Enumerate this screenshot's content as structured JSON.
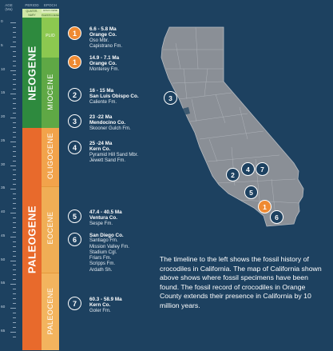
{
  "headers": {
    "age": "AGE",
    "age_unit": "(Ma)",
    "period": "PERIOD",
    "epoch": "EPOCH"
  },
  "ruler_labels": [
    "0",
    "5",
    "10",
    "15",
    "20",
    "25",
    "30",
    "35",
    "40",
    "45",
    "50",
    "55",
    "60",
    "65"
  ],
  "periods": {
    "quaternary": "QUATER-NARY",
    "neogene": "NEOGENE",
    "paleogene": "PALEOGENE"
  },
  "epochs": {
    "holocene": "HOLO-CENE",
    "pleistocene": "PLEISTO-CENE",
    "pliocene": "PLIO",
    "miocene": "MIOCENE",
    "oligocene": "OLIGOCENE",
    "eocene": "EOCENE",
    "paleocene": "PALEOCENE"
  },
  "entries": [
    {
      "num": "1",
      "color": "#ef8a32",
      "lines": [
        "6.6 - 5.8 Ma",
        "Orange Co.",
        "Oso Mbr.",
        "Capistrano Fm."
      ]
    },
    {
      "num": "1",
      "color": "#ef8a32",
      "lines": [
        "14.9 - 7.1 Ma",
        "Orange Co.",
        "Monterey Fm."
      ]
    },
    {
      "num": "2",
      "color": "#1d4160",
      "lines": [
        "16 - 15 Ma",
        "San Luis Obispo Co.",
        "Caliente Fm."
      ]
    },
    {
      "num": "3",
      "color": "#1d4160",
      "lines": [
        "23 -22 Ma",
        "Mendocino Co.",
        "Skooner Gulch Fm."
      ]
    },
    {
      "num": "4",
      "color": "#1d4160",
      "lines": [
        "25 -24 Ma",
        "Kern Co.",
        "Pyramid Hill Sand Mbr.",
        "Jewett Sand Fm."
      ]
    },
    {
      "num": "5",
      "color": "#1d4160",
      "lines": [
        "47.4 - 40.5 Ma",
        "Ventura Co.",
        "Sespe Fm."
      ]
    },
    {
      "num": "6",
      "color": "#1d4160",
      "lines": [
        "San Diego Co.",
        "Santiago Fm.",
        "Mission Valley Fm.",
        "Stadium Cgl.",
        "Friars Fm.",
        "Scripps Fm.",
        "Ardath Sh."
      ]
    },
    {
      "num": "7",
      "color": "#1d4160",
      "lines": [
        "60.3 - 58.9 Ma",
        "Kern Co.",
        "Goler Fm."
      ]
    }
  ],
  "map_pins": [
    {
      "num": "3",
      "color": "#1d4160"
    },
    {
      "num": "2",
      "color": "#1d4160"
    },
    {
      "num": "4",
      "color": "#1d4160"
    },
    {
      "num": "7",
      "color": "#1d4160"
    },
    {
      "num": "5",
      "color": "#1d4160"
    },
    {
      "num": "1",
      "color": "#ef8a32"
    },
    {
      "num": "6",
      "color": "#1d4160"
    }
  ],
  "description": "The timeline to the left shows the fossil history of crocodiles in California. The map of California shown above shows where fossil specimens have been found. The fossil record of crocodiles in Orange County extends their presence in California by 10 million years.",
  "colors": {
    "background": "#1d4160",
    "neogene": "#2e8a3e",
    "miocene": "#5fa845",
    "pliocene": "#8cc850",
    "quaternary": "#cfe6a5",
    "paleogene": "#e86a2c",
    "oligocene": "#f2a34b",
    "eocene": "#f0ae55",
    "paleocene": "#f3b45e",
    "map_fill": "#8a8f96",
    "badge_orange": "#ef8a32"
  }
}
